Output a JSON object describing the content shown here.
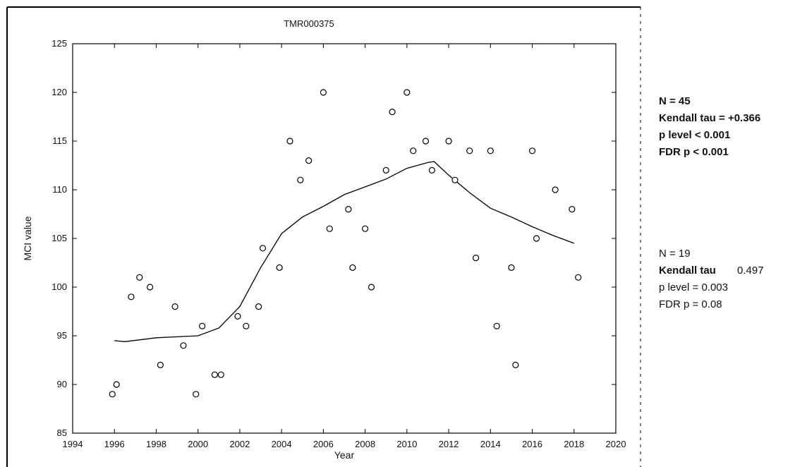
{
  "chart_data": {
    "type": "scatter",
    "title": "TMR000375",
    "xlabel": "Year",
    "ylabel": "MCI value",
    "xlim": [
      1994,
      2020
    ],
    "ylim": [
      85,
      125
    ],
    "xticks": [
      1994,
      1996,
      1998,
      2000,
      2002,
      2004,
      2006,
      2008,
      2010,
      2012,
      2014,
      2016,
      2018,
      2020
    ],
    "yticks": [
      85,
      90,
      95,
      100,
      105,
      110,
      115,
      120,
      125
    ],
    "xtick_labels": [
      "1994",
      "1996",
      "1998",
      "2000",
      "2002",
      "2004",
      "2006",
      "2008",
      "2010",
      "2012",
      "2014",
      "2016",
      "2018",
      "2020"
    ],
    "ytick_labels": [
      "85",
      "90",
      "95",
      "100",
      "105",
      "110",
      "115",
      "120",
      "125"
    ],
    "grid": false,
    "points": [
      {
        "x": 1995.9,
        "y": 89
      },
      {
        "x": 1996.1,
        "y": 90
      },
      {
        "x": 1996.8,
        "y": 99
      },
      {
        "x": 1997.2,
        "y": 101
      },
      {
        "x": 1997.7,
        "y": 100
      },
      {
        "x": 1998.2,
        "y": 92
      },
      {
        "x": 1998.9,
        "y": 98
      },
      {
        "x": 1999.3,
        "y": 94
      },
      {
        "x": 1999.9,
        "y": 89
      },
      {
        "x": 2000.2,
        "y": 96
      },
      {
        "x": 2000.8,
        "y": 91
      },
      {
        "x": 2001.1,
        "y": 91
      },
      {
        "x": 2001.9,
        "y": 97
      },
      {
        "x": 2002.3,
        "y": 96
      },
      {
        "x": 2002.9,
        "y": 98
      },
      {
        "x": 2003.1,
        "y": 104
      },
      {
        "x": 2003.9,
        "y": 102
      },
      {
        "x": 2004.4,
        "y": 115
      },
      {
        "x": 2004.9,
        "y": 111
      },
      {
        "x": 2005.3,
        "y": 113
      },
      {
        "x": 2006.0,
        "y": 120
      },
      {
        "x": 2006.3,
        "y": 106
      },
      {
        "x": 2007.2,
        "y": 108
      },
      {
        "x": 2007.4,
        "y": 102
      },
      {
        "x": 2008.0,
        "y": 106
      },
      {
        "x": 2008.3,
        "y": 100
      },
      {
        "x": 2009.0,
        "y": 112
      },
      {
        "x": 2009.3,
        "y": 118
      },
      {
        "x": 2010.0,
        "y": 120
      },
      {
        "x": 2010.3,
        "y": 114
      },
      {
        "x": 2010.9,
        "y": 115
      },
      {
        "x": 2011.2,
        "y": 112
      },
      {
        "x": 2012.0,
        "y": 115
      },
      {
        "x": 2012.3,
        "y": 111
      },
      {
        "x": 2013.0,
        "y": 114
      },
      {
        "x": 2013.3,
        "y": 103
      },
      {
        "x": 2014.0,
        "y": 114
      },
      {
        "x": 2014.3,
        "y": 96
      },
      {
        "x": 2015.0,
        "y": 102
      },
      {
        "x": 2015.2,
        "y": 92
      },
      {
        "x": 2016.0,
        "y": 114
      },
      {
        "x": 2016.2,
        "y": 105
      },
      {
        "x": 2017.1,
        "y": 110
      },
      {
        "x": 2017.9,
        "y": 108
      },
      {
        "x": 2018.2,
        "y": 101
      }
    ],
    "smooth_line": [
      {
        "x": 1996.0,
        "y": 94.5
      },
      {
        "x": 1996.5,
        "y": 94.4
      },
      {
        "x": 1998.0,
        "y": 94.8
      },
      {
        "x": 2000.0,
        "y": 95.0
      },
      {
        "x": 2001.0,
        "y": 95.8
      },
      {
        "x": 2002.0,
        "y": 98.0
      },
      {
        "x": 2003.0,
        "y": 102.0
      },
      {
        "x": 2004.0,
        "y": 105.5
      },
      {
        "x": 2005.0,
        "y": 107.2
      },
      {
        "x": 2006.0,
        "y": 108.3
      },
      {
        "x": 2007.0,
        "y": 109.5
      },
      {
        "x": 2008.0,
        "y": 110.3
      },
      {
        "x": 2009.0,
        "y": 111.1
      },
      {
        "x": 2010.0,
        "y": 112.2
      },
      {
        "x": 2011.0,
        "y": 112.8
      },
      {
        "x": 2011.3,
        "y": 112.9
      },
      {
        "x": 2012.0,
        "y": 111.5
      },
      {
        "x": 2013.0,
        "y": 109.7
      },
      {
        "x": 2014.0,
        "y": 108.1
      },
      {
        "x": 2015.0,
        "y": 107.2
      },
      {
        "x": 2016.0,
        "y": 106.2
      },
      {
        "x": 2017.0,
        "y": 105.3
      },
      {
        "x": 2018.0,
        "y": 104.5
      }
    ]
  },
  "stats_blocks": [
    {
      "lines": [
        "N = 45",
        "Kendall tau = +0.366",
        "p level < 0.001",
        "FDR p < 0.001"
      ]
    },
    {
      "n": "N = 19",
      "tau_label": "Kendall tau",
      "tau_value": "0.497",
      "p_level": "p level = 0.003",
      "fdr": "FDR p = 0.08"
    }
  ]
}
